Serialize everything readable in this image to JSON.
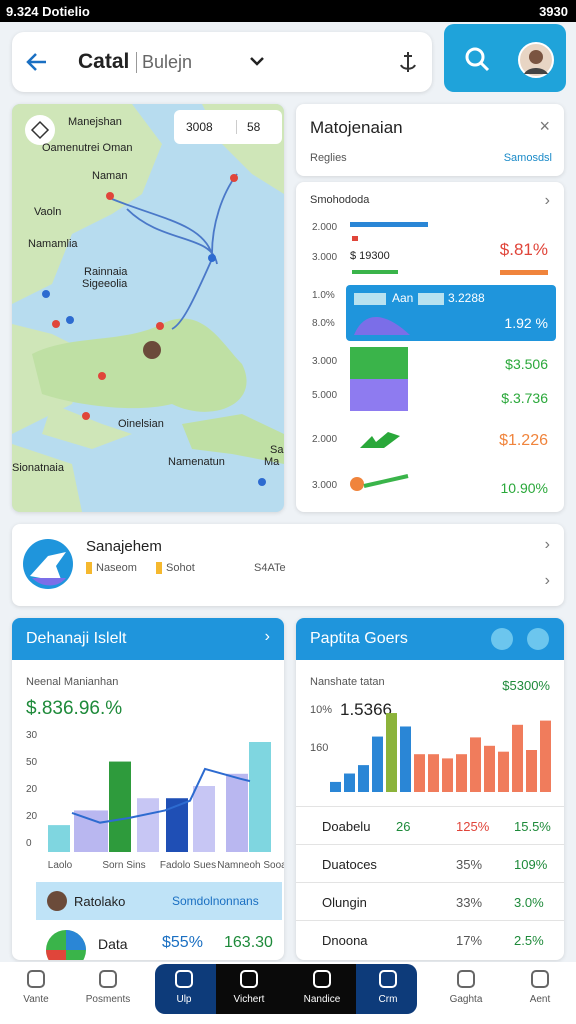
{
  "status_bar": {
    "left": "9.324 Dotielio",
    "right": "3930"
  },
  "search": {
    "title": "Catal",
    "placeholder": "Bulejn"
  },
  "map": {
    "controls": [
      "3008",
      "58"
    ],
    "labels": [
      "Manejshan",
      "Oamenutrei Oman",
      "Naman",
      "Vaoln",
      "Namamlia",
      "Rainnaia",
      "Sigeeolia",
      "Oinelsian",
      "Sionatnaia",
      "Namenatun",
      "Sa",
      "Ma"
    ]
  },
  "detail_card": {
    "title": "Matojenaian",
    "left": "Reglies",
    "right": "Samosdsl"
  },
  "stats_card": {
    "title": "Smohododa",
    "axis_labels": [
      "2.000",
      "3.000",
      "1.0%",
      "8.0%",
      "3.000",
      "5.000",
      "2.000",
      "3.000"
    ],
    "row1_label": "$ 19300",
    "highlight_label": "Aan",
    "highlight_value": "3.2288",
    "values": [
      "$.81%",
      "1.92 %",
      "$3.506",
      "$.3.736",
      "$1.226",
      "10.90%"
    ]
  },
  "place_card": {
    "title": "Sanajehem",
    "tag1": "Naseom",
    "tag2": "Sohot",
    "location": "S4ATe"
  },
  "left_panel": {
    "header": "Dehanaji Islelt",
    "subtitle": "Neenal Manianhan",
    "big_value": "$.836.96.%",
    "chart": {
      "type": "bar",
      "axis_labels": [
        "30",
        "50",
        "20",
        "20",
        "0"
      ],
      "x_labels": [
        "Laolo",
        "Sorn Sins",
        "Fadolo Sues",
        "Namneoh Sooa"
      ],
      "ylim": [
        0,
        45
      ],
      "bars": [
        {
          "color": "#7fd6e0",
          "value": 11
        },
        {
          "color": "#b9b7f0",
          "value": 17
        },
        {
          "color": "#b9b7f0",
          "value": 17
        },
        {
          "color": "#2e9b3c",
          "value": 37
        },
        {
          "color": "#c7c6f4",
          "value": 22
        },
        {
          "color": "#1f4fb5",
          "value": 22
        },
        {
          "color": "#c7c6f4",
          "value": 27
        },
        {
          "color": "#b9b7f0",
          "value": 32
        },
        {
          "color": "#7fd6e0",
          "value": 45
        }
      ],
      "line": {
        "color": "#2d6bd0",
        "values": [
          16,
          12,
          14,
          17,
          21,
          34,
          30,
          29
        ]
      }
    },
    "strip": {
      "name": "Ratolako",
      "action": "Somdolnonnans"
    },
    "footer": {
      "label": "Data",
      "value1": "$55%",
      "value2": "163.30"
    }
  },
  "right_panel": {
    "header": "Paptita Goers",
    "subtitle": "Nanshate tatan",
    "big_value": "$5300%",
    "axis_labels": [
      "10%",
      "160"
    ],
    "headline": "1.5366",
    "chart": {
      "type": "bar",
      "ylim": [
        0,
        100
      ],
      "bars": [
        {
          "color": "#2a86d6",
          "value": 12
        },
        {
          "color": "#2a86d6",
          "value": 22
        },
        {
          "color": "#2a86d6",
          "value": 32
        },
        {
          "color": "#2a86d6",
          "value": 66
        },
        {
          "color": "#8cb33a",
          "value": 94
        },
        {
          "color": "#2a86d6",
          "value": 78
        },
        {
          "color": "#f07c5c",
          "value": 45
        },
        {
          "color": "#f07c5c",
          "value": 45
        },
        {
          "color": "#f07c5c",
          "value": 40
        },
        {
          "color": "#f07c5c",
          "value": 45
        },
        {
          "color": "#f07c5c",
          "value": 65
        },
        {
          "color": "#f07c5c",
          "value": 55
        },
        {
          "color": "#f07c5c",
          "value": 48
        },
        {
          "color": "#f07c5c",
          "value": 80
        },
        {
          "color": "#f07c5c",
          "value": 50
        },
        {
          "color": "#f07c5c",
          "value": 85
        }
      ]
    },
    "table": [
      [
        "Doabelu",
        "26",
        "125%",
        "15.5%"
      ],
      [
        "Duatoces",
        "",
        "35%",
        "109%"
      ],
      [
        "Olungin",
        "",
        "33%",
        "3.0%"
      ],
      [
        "Dnoona",
        "",
        "17%",
        "2.5%"
      ]
    ]
  },
  "nav": [
    "Vante",
    "Posments",
    "Ulp",
    "Vichert",
    "Nandice",
    "Crm",
    "Gaghta",
    "Aent"
  ]
}
